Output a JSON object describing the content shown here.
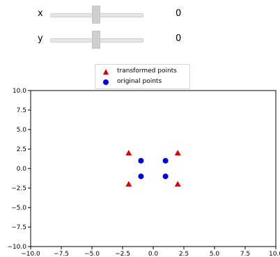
{
  "sliders": [
    {
      "label": "x",
      "value": "0",
      "position": 0.5
    },
    {
      "label": "y",
      "value": "0",
      "position": 0.5
    }
  ],
  "legend": {
    "transformed_label": "transformed points",
    "original_label": "original points"
  },
  "colors": {
    "transformed": "#e00000",
    "original": "#0000e0"
  },
  "chart_data": {
    "type": "scatter",
    "xlim": [
      -10,
      10
    ],
    "ylim": [
      -10,
      10
    ],
    "xticks": [
      "−10.0",
      "−7.5",
      "−5.0",
      "−2.5",
      "0.0",
      "2.5",
      "5.0",
      "7.5",
      "10.0"
    ],
    "yticks": [
      "10.0",
      "7.5",
      "5.0",
      "2.5",
      "0.0",
      "−2.5",
      "−5.0",
      "−7.5",
      "−10.0"
    ],
    "series": [
      {
        "name": "transformed points",
        "marker": "triangle",
        "color": "#e00000",
        "points": [
          [
            -2,
            2
          ],
          [
            2,
            2
          ],
          [
            -2,
            -2
          ],
          [
            2,
            -2
          ]
        ]
      },
      {
        "name": "original points",
        "marker": "circle",
        "color": "#0000e0",
        "points": [
          [
            -1,
            1
          ],
          [
            1,
            1
          ],
          [
            -1,
            -1
          ],
          [
            1,
            -1
          ]
        ]
      }
    ],
    "grid": false,
    "legend_position": "top-center"
  }
}
